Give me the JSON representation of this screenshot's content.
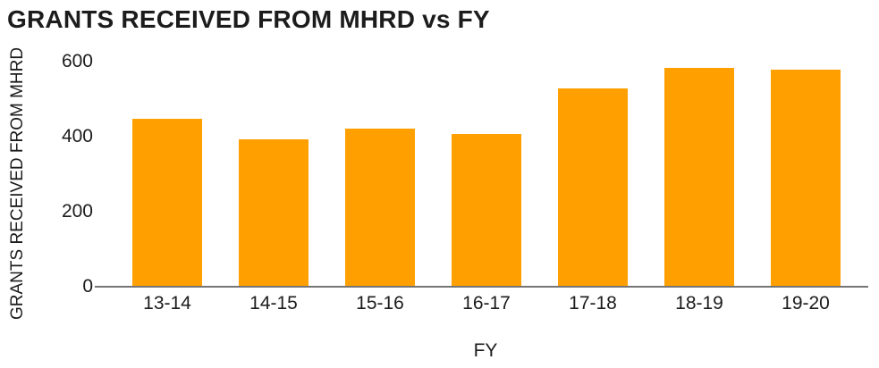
{
  "chart_data": {
    "type": "bar",
    "title": "GRANTS RECEIVED FROM MHRD vs FY",
    "xlabel": "FY",
    "ylabel": "GRANTS RECEIVED FROM MHRD",
    "categories": [
      "13-14",
      "14-15",
      "15-16",
      "16-17",
      "17-18",
      "18-19",
      "19-20"
    ],
    "values": [
      445,
      390,
      420,
      405,
      525,
      580,
      575
    ],
    "ylim": [
      0,
      600
    ],
    "yticks": [
      0,
      200,
      400,
      600
    ],
    "grid": false,
    "legend_position": "none",
    "bar_color": "#FFA000",
    "axis_line_color": "#757575",
    "text_color": "#1C1C1C"
  }
}
